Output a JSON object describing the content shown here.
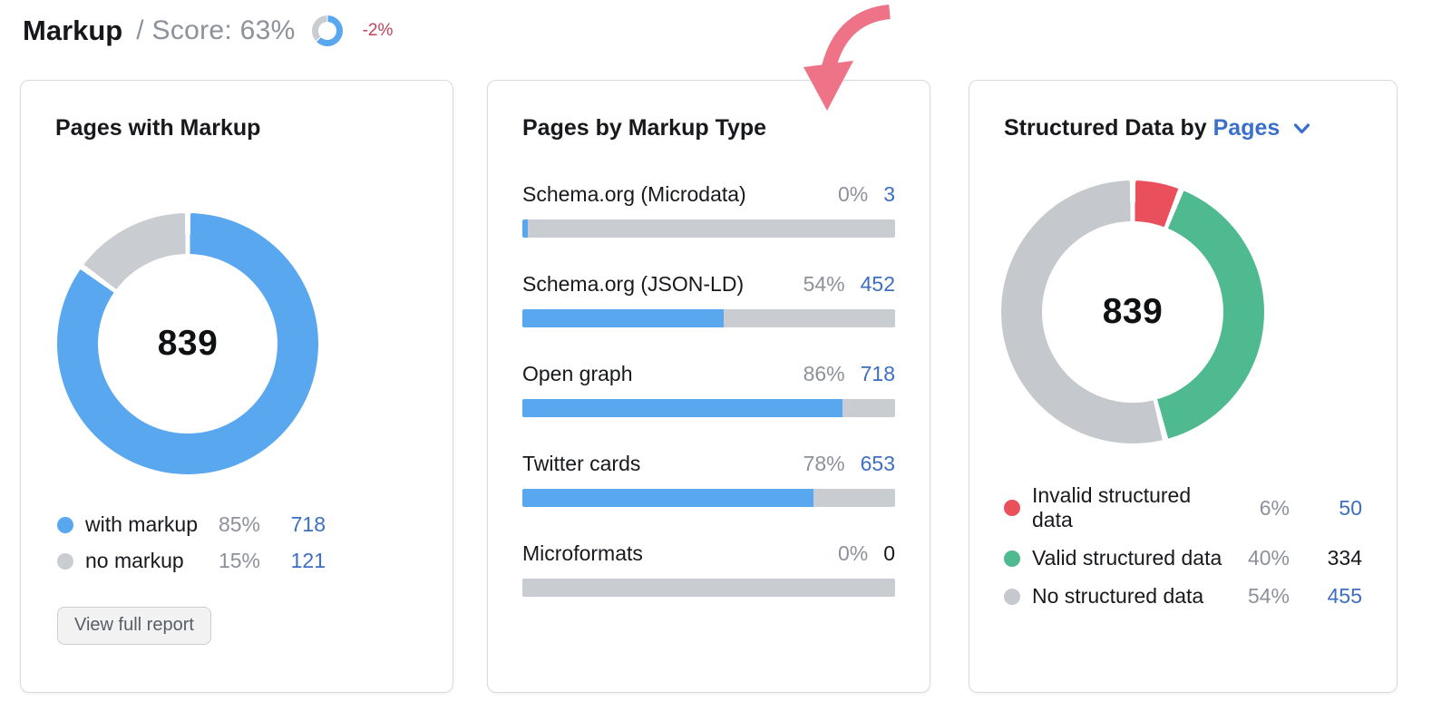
{
  "header": {
    "title": "Markup",
    "score_text": "/ Score: 63%",
    "delta": "-2%"
  },
  "colors": {
    "chart_blue": "#59a7ef",
    "chart_gray": "#c9cdd2",
    "chart_green": "#4fb98f",
    "chart_red": "#e9505c",
    "link_blue": "#3d6ec0",
    "percent_gray": "#8c919b",
    "delta_red": "#bf4356",
    "arrow_pink": "#ee7387"
  },
  "cards": {
    "pages_with_markup": {
      "title": "Pages with Markup",
      "button_label": "View full report"
    },
    "pages_by_markup_type": {
      "title": "Pages by Markup Type"
    },
    "structured_data": {
      "title_prefix": "Structured Data by",
      "selector_label": "Pages"
    }
  },
  "chart_data": [
    {
      "id": "score-mini-donut",
      "type": "donut",
      "title": "Score: 63%",
      "segments": [
        {
          "label": "score",
          "percent": 63,
          "color": "#59a7ef"
        },
        {
          "label": "remaining",
          "percent": 37,
          "color": "#c9cdd2"
        }
      ]
    },
    {
      "id": "pages-with-markup-donut",
      "type": "donut",
      "title": "Pages with Markup",
      "center_label": "839",
      "segments": [
        {
          "label": "with markup",
          "percent": 85,
          "percent_label": "85%",
          "value": 718,
          "color": "#59a7ef",
          "value_link": true
        },
        {
          "label": "no markup",
          "percent": 15,
          "percent_label": "15%",
          "value": 121,
          "color": "#c9cdd2",
          "value_link": true
        }
      ]
    },
    {
      "id": "pages-by-markup-type-bars",
      "type": "bar",
      "title": "Pages by Markup Type",
      "rows": [
        {
          "label": "Schema.org (Microdata)",
          "percent": 0,
          "percent_label": "0%",
          "value": 3,
          "bar_percent": 1.5,
          "value_link": true
        },
        {
          "label": "Schema.org (JSON-LD)",
          "percent": 54,
          "percent_label": "54%",
          "value": 452,
          "bar_percent": 54,
          "value_link": true
        },
        {
          "label": "Open graph",
          "percent": 86,
          "percent_label": "86%",
          "value": 718,
          "bar_percent": 86,
          "value_link": true
        },
        {
          "label": "Twitter cards",
          "percent": 78,
          "percent_label": "78%",
          "value": 653,
          "bar_percent": 78,
          "value_link": true
        },
        {
          "label": "Microformats",
          "percent": 0,
          "percent_label": "0%",
          "value": 0,
          "bar_percent": 0,
          "value_link": false
        }
      ]
    },
    {
      "id": "structured-data-donut",
      "type": "donut",
      "title": "Structured Data by Pages",
      "center_label": "839",
      "segments": [
        {
          "label": "Invalid structured data",
          "percent": 6,
          "percent_label": "6%",
          "value": 50,
          "color": "#e9505c",
          "value_link": true
        },
        {
          "label": "Valid structured data",
          "percent": 40,
          "percent_label": "40%",
          "value": 334,
          "color": "#4fb98f",
          "value_link": false
        },
        {
          "label": "No structured data",
          "percent": 54,
          "percent_label": "54%",
          "value": 455,
          "color": "#c5c8cd",
          "value_link": true
        }
      ]
    }
  ]
}
